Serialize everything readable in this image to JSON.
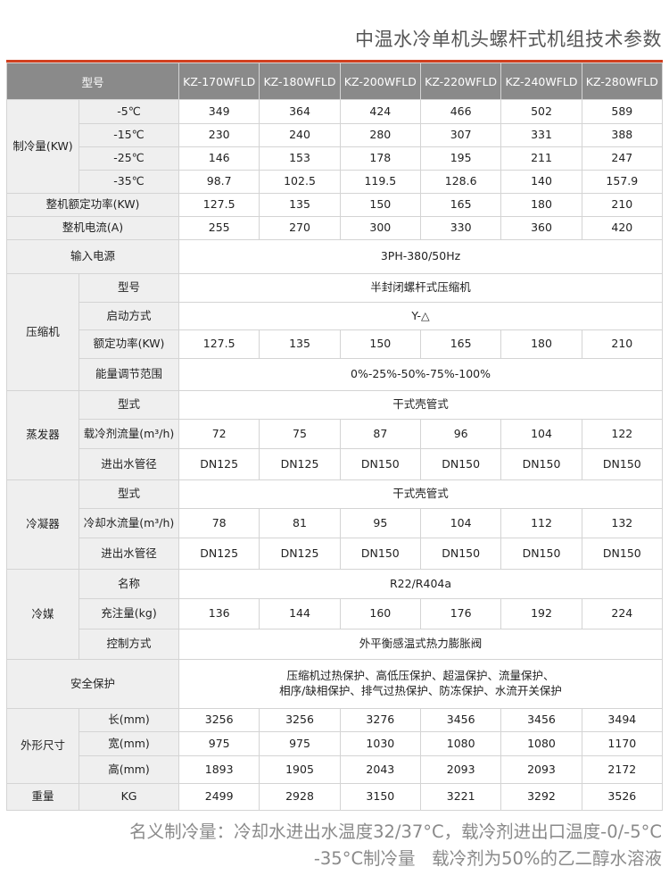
{
  "title": "中温水冷单机头螺杆式机组技术参数",
  "colors": {
    "accent_line": "#d2401f",
    "header_bg": "#8a8a8a",
    "label_bg": "#efefef"
  },
  "table": {
    "model_label": "型号",
    "models": [
      "KZ-170WFLD",
      "KZ-180WFLD",
      "KZ-200WFLD",
      "KZ-220WFLD",
      "KZ-240WFLD",
      "KZ-280WFLD"
    ],
    "groups": [
      {
        "label": "制冷量(KW)",
        "rows": [
          {
            "sub": "-5℃",
            "values": [
              "349",
              "364",
              "424",
              "466",
              "502",
              "589"
            ],
            "h": 27
          },
          {
            "sub": "-15℃",
            "values": [
              "230",
              "240",
              "280",
              "307",
              "331",
              "388"
            ],
            "h": 26
          },
          {
            "sub": "-25℃",
            "values": [
              "146",
              "153",
              "178",
              "195",
              "211",
              "247"
            ],
            "h": 26
          },
          {
            "sub": "-35℃",
            "values": [
              "98.7",
              "102.5",
              "119.5",
              "128.6",
              "140",
              "157.9"
            ],
            "h": 26
          }
        ]
      },
      {
        "label": "整机额定功率(KW)",
        "rows": [
          {
            "values": [
              "127.5",
              "135",
              "150",
              "165",
              "180",
              "210"
            ],
            "h": 26
          }
        ]
      },
      {
        "label": "整机电流(A)",
        "rows": [
          {
            "values": [
              "255",
              "270",
              "300",
              "330",
              "360",
              "420"
            ],
            "h": 26
          }
        ]
      },
      {
        "label": "输入电源",
        "rows": [
          {
            "merged": "3PH-380/50Hz",
            "h": 38
          }
        ]
      },
      {
        "label": "压缩机",
        "rows": [
          {
            "sub": "型号",
            "merged": "半封闭螺杆式压缩机",
            "h": 32
          },
          {
            "sub": "启动方式",
            "merged": "Y-△",
            "h": 31
          },
          {
            "sub": "额定功率(KW)",
            "values": [
              "127.5",
              "135",
              "150",
              "165",
              "180",
              "210"
            ],
            "h": 32
          },
          {
            "sub": "能量调节范围",
            "merged": "0%-25%-50%-75%-100%",
            "h": 36
          }
        ]
      },
      {
        "label": "蒸发器",
        "rows": [
          {
            "sub": "型式",
            "merged": "干式壳管式",
            "h": 32
          },
          {
            "sub": "载冷剂流量(m³/h)",
            "values": [
              "72",
              "75",
              "87",
              "96",
              "104",
              "122"
            ],
            "h": 33
          },
          {
            "sub": "进出水管径",
            "values": [
              "DN125",
              "DN125",
              "DN150",
              "DN150",
              "DN150",
              "DN150"
            ],
            "h": 35
          }
        ]
      },
      {
        "label": "冷凝器",
        "rows": [
          {
            "sub": "型式",
            "merged": "干式壳管式",
            "h": 32
          },
          {
            "sub": "冷却水流量(m³/h)",
            "values": [
              "78",
              "81",
              "95",
              "104",
              "112",
              "132"
            ],
            "h": 33
          },
          {
            "sub": "进出水管径",
            "values": [
              "DN125",
              "DN125",
              "DN150",
              "DN150",
              "DN150",
              "DN150"
            ],
            "h": 35
          }
        ]
      },
      {
        "label": "冷媒",
        "rows": [
          {
            "sub": "名称",
            "merged": "R22/R404a",
            "h": 33
          },
          {
            "sub": "充注量(kg)",
            "values": [
              "136",
              "144",
              "160",
              "176",
              "192",
              "224"
            ],
            "h": 34
          },
          {
            "sub": "控制方式",
            "merged": "外平衡感温式热力膨胀阀",
            "h": 34
          }
        ]
      },
      {
        "label": "安全保护",
        "rows": [
          {
            "merged": "压缩机过热保护、高低压保护、超温保护、流量保护、\n相序/缺相保护、排气过热保护、防冻保护、水流开关保护",
            "h": 55
          }
        ]
      },
      {
        "label": "外形尺寸",
        "rows": [
          {
            "sub": "长(mm)",
            "values": [
              "3256",
              "3256",
              "3276",
              "3456",
              "3456",
              "3494"
            ],
            "h": 26
          },
          {
            "sub": "宽(mm)",
            "values": [
              "975",
              "975",
              "1030",
              "1080",
              "1080",
              "1170"
            ],
            "h": 27
          },
          {
            "sub": "高(mm)",
            "values": [
              "1893",
              "1905",
              "2043",
              "2093",
              "2093",
              "2172"
            ],
            "h": 31
          }
        ]
      },
      {
        "label": "重量",
        "rows": [
          {
            "sub": "KG",
            "values": [
              "2499",
              "2928",
              "3150",
              "3221",
              "3292",
              "3526"
            ],
            "h": 30
          }
        ]
      }
    ]
  },
  "notes": [
    "名义制冷量：冷却水进出水温度32/37°C，载冷剂进出口温度-0/-5°C",
    "-35°C制冷量   载冷剂为50%的乙二醇水溶液"
  ]
}
